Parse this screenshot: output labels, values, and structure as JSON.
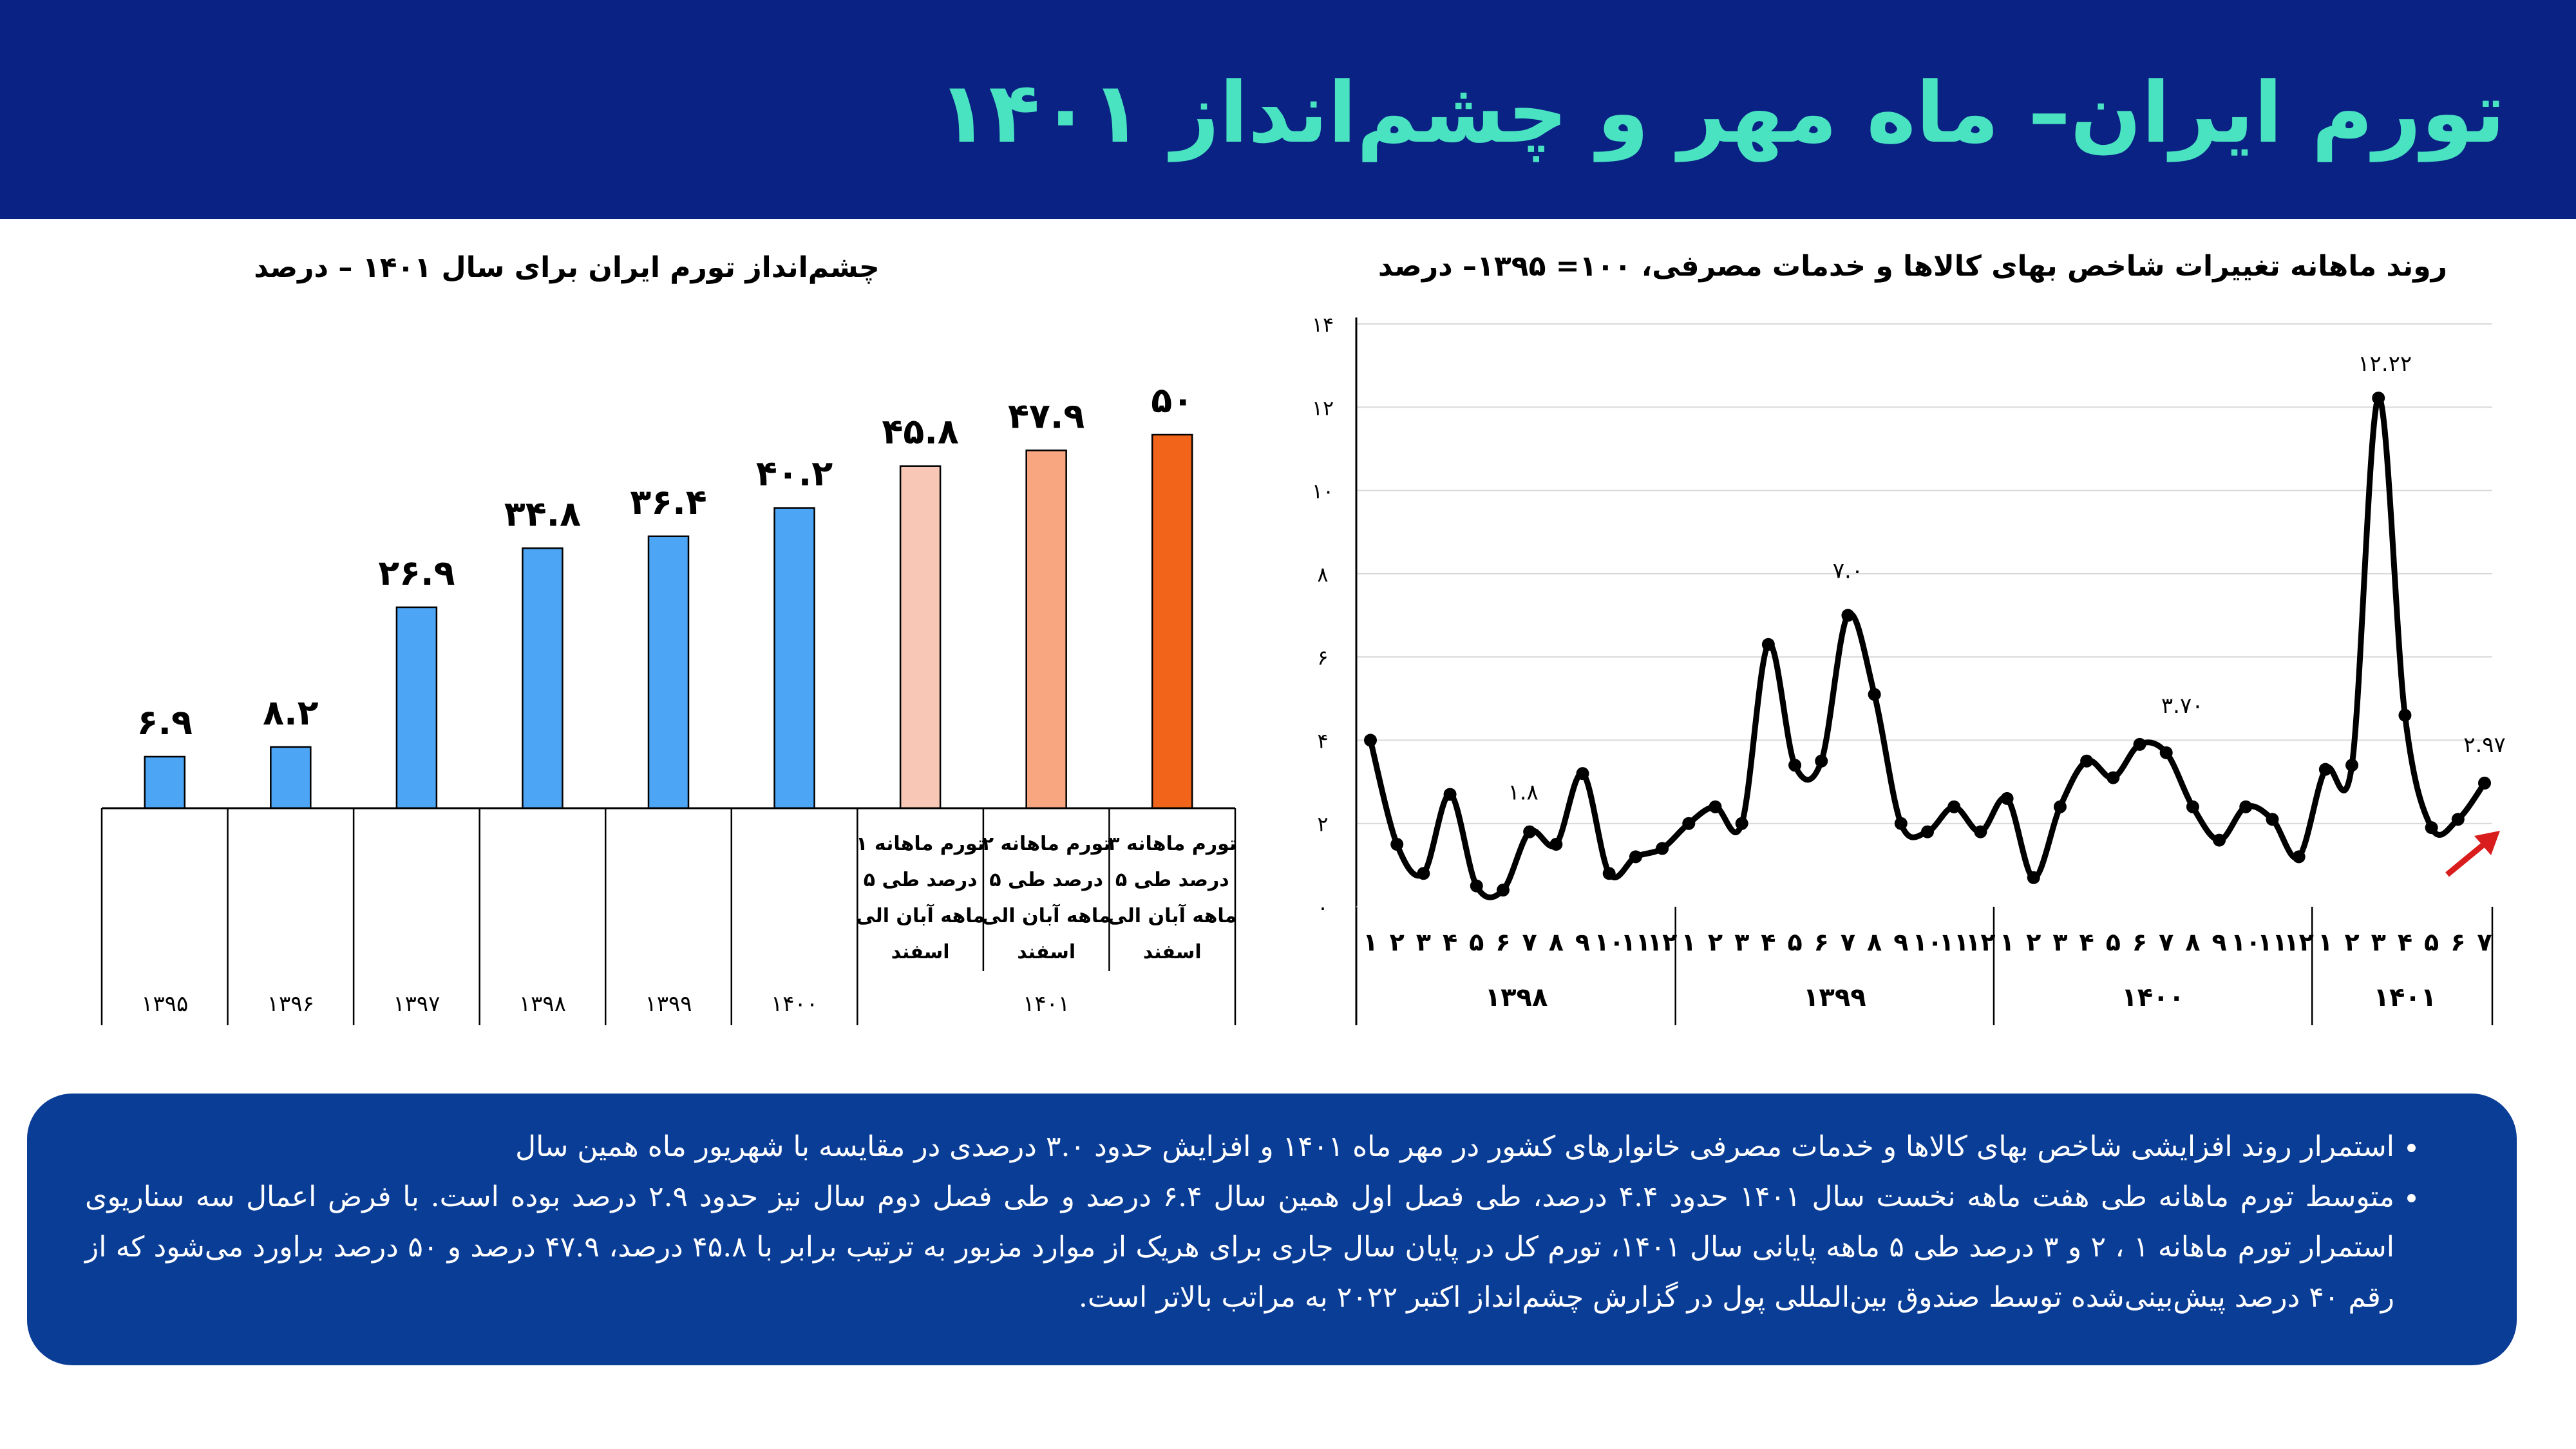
{
  "header": {
    "title": "تورم ایران– ماه مهر و چشم‌انداز ۱۴۰۱"
  },
  "left_chart_title": "چشم‌انداز تورم ایران برای سال ۱۴۰۱ – درصد",
  "right_chart_title": "روند ماهانه تغییرات شاخص بهای کالاها و خدمات مصرفی، ۱۰۰= ۱۳۹۵– درصد",
  "notes": [
    "استمرار روند افزایشی شاخص بهای کالاها و خدمات مصرفی خانوارهای کشور در مهر ماه ۱۴۰۱ و افزایش حدود ۳.۰ درصدی در مقایسه با شهریور ماه همین سال",
    "متوسط تورم ماهانه طی هفت ماهه نخست سال ۱۴۰۱ حدود ۴.۴ درصد، طی فصل اول همین سال ۶.۴ درصد و طی فصل دوم سال نیز حدود ۲.۹ درصد بوده است. با فرض اعمال سه سناریوی استمرار تورم ماهانه ۱ ، ۲ و ۳ درصد طی ۵ ماهه پایانی سال ۱۴۰۱، تورم کل در پایان سال جاری  برای هریک از موارد مزبور به ترتیب برابر با ۴۵.۸ درصد، ۴۷.۹ درصد و ۵۰ درصد براورد می‌شود که از رقم ۴۰ درصد پیش‌بینی‌شده توسط صندوق بین‌المللی پول در گزارش چشم‌انداز اکتبر ۲۰۲۲ به مراتب بالاتر است."
  ],
  "colors": {
    "header_bg": "#0a2283",
    "title": "#49e3c2",
    "notes_bg": "#0a3d96",
    "bar_actual": "#4da6f5",
    "bar_scenario_1": "#f8c7b5",
    "bar_scenario_2": "#f8a680",
    "bar_scenario_3": "#f26419",
    "trend_arrow": "#d91c1c"
  },
  "chart_data": [
    {
      "type": "bar",
      "title": "چشم‌انداز تورم ایران برای سال ۱۴۰۱ – درصد",
      "categories": [
        "۱۳۹۵",
        "۱۳۹۶",
        "۱۳۹۷",
        "۱۳۹۸",
        "۱۳۹۹",
        "۱۴۰۰",
        "تورم ماهانه ۱ درصد طی ۵ ماهه آبان الی اسفند",
        "تورم ماهانه ۲ درصد طی ۵ ماهه آبان الی اسفند",
        "تورم ماهانه ۳ درصد طی ۵ ماهه آبان الی اسفند"
      ],
      "values": [
        6.9,
        8.2,
        26.9,
        34.8,
        36.4,
        40.2,
        45.8,
        47.9,
        50
      ],
      "data_labels": [
        "۶.۹",
        "۸.۲",
        "۲۶.۹",
        "۳۴.۸",
        "۳۶.۴",
        "۴۰.۲",
        "۴۵.۸",
        "۴۷.۹",
        "۵۰"
      ],
      "year_labels": [
        "۱۳۹۵",
        "۱۳۹۶",
        "۱۳۹۷",
        "۱۳۹۸",
        "۱۳۹۹",
        "۱۴۰۰"
      ],
      "scenario_group_label": "۱۴۰۱",
      "ylim": [
        0,
        60
      ]
    },
    {
      "type": "line",
      "title": "روند ماهانه تغییرات شاخص بهای کالاها و خدمات مصرفی، ۱۰۰= ۱۳۹۵– درصد",
      "ylim": [
        0,
        14
      ],
      "y_ticks": [
        "۰",
        "۲",
        "۴",
        "۶",
        "۸",
        "۱۰",
        "۱۲",
        "۱۴"
      ],
      "groups": [
        {
          "label": "۱۳۹۸",
          "months": [
            "۱",
            "۲",
            "۳",
            "۴",
            "۵",
            "۶",
            "۷",
            "۸",
            "۹",
            "۱۰",
            "۱۱",
            "۱۲"
          ]
        },
        {
          "label": "۱۳۹۹",
          "months": [
            "۱",
            "۲",
            "۳",
            "۴",
            "۵",
            "۶",
            "۷",
            "۸",
            "۹",
            "۱۰",
            "۱۱",
            "۱۲"
          ]
        },
        {
          "label": "۱۴۰۰",
          "months": [
            "۱",
            "۲",
            "۳",
            "۴",
            "۵",
            "۶",
            "۷",
            "۸",
            "۹",
            "۱۰",
            "۱۱",
            "۱۲"
          ]
        },
        {
          "label": "۱۴۰۱",
          "months": [
            "۱",
            "۲",
            "۳",
            "۴",
            "۵",
            "۶",
            "۷"
          ]
        }
      ],
      "values": [
        4.0,
        1.5,
        0.8,
        2.7,
        0.5,
        0.4,
        1.8,
        1.5,
        3.2,
        0.8,
        1.2,
        1.4,
        2.0,
        2.4,
        2.0,
        6.3,
        3.4,
        3.5,
        7.0,
        5.1,
        2.0,
        1.8,
        2.4,
        1.8,
        2.6,
        0.7,
        2.4,
        3.5,
        3.1,
        3.9,
        3.7,
        2.4,
        1.6,
        2.4,
        2.1,
        1.2,
        3.3,
        3.4,
        12.22,
        4.6,
        1.9,
        2.1,
        2.97
      ],
      "point_labels": [
        {
          "index": 6,
          "text": "۱.۸"
        },
        {
          "index": 18,
          "text": "۷.۰"
        },
        {
          "index": 30,
          "text": "۳.۷۰"
        },
        {
          "index": 38,
          "text": "۱۲.۲۲"
        },
        {
          "index": 42,
          "text": "۲.۹۷"
        }
      ]
    }
  ]
}
